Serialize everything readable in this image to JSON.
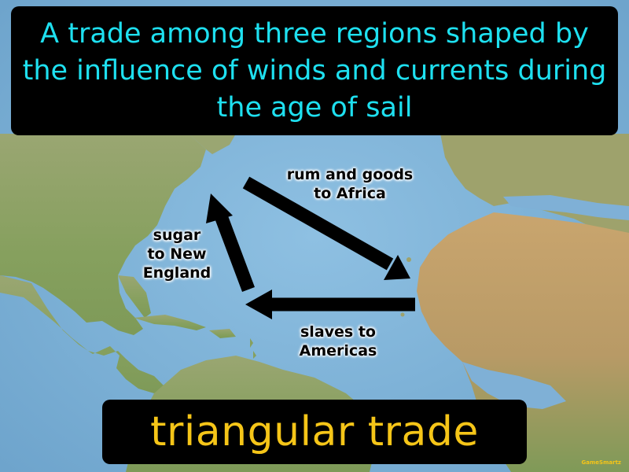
{
  "definition": "A trade among three regions shaped by the influence of winds and currents during the age of sail",
  "term": "triangular trade",
  "brand": "GameSmartz",
  "routes": {
    "to_africa": "rum and goods\nto Africa",
    "to_new_england": "sugar\nto New\nEngland",
    "to_americas": "slaves to\nAmericas"
  },
  "colors": {
    "definition_text": "#1ee0f0",
    "term_text": "#f5c518",
    "ocean": "#7fb0d6",
    "land": "#8fa36a",
    "arrow": "#000000"
  }
}
